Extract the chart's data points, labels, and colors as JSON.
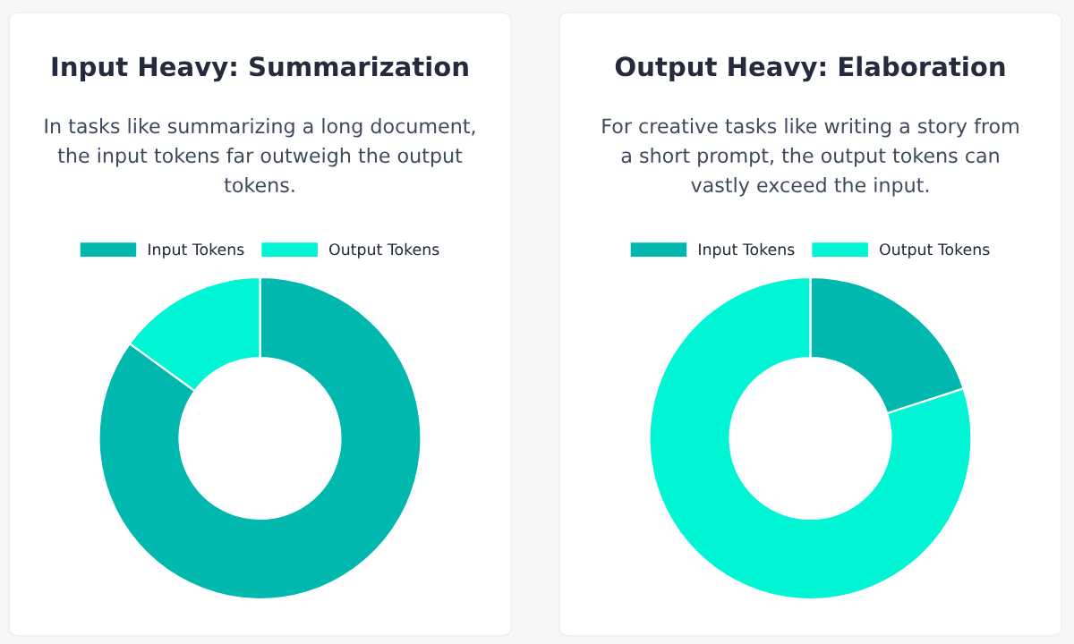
{
  "chart_data": [
    {
      "type": "donut",
      "title": "Input Heavy: Summarization",
      "subtitle": "In tasks like summarizing a long document, the input tokens far outweigh the output tokens.",
      "categories": [
        "Input Tokens",
        "Output Tokens"
      ],
      "values": [
        85,
        15
      ],
      "colors": [
        "#00b8ad",
        "#00f5d4"
      ],
      "legend": "top"
    },
    {
      "type": "donut",
      "title": "Output Heavy: Elaboration",
      "subtitle": "For creative tasks like writing a story from a short prompt, the output tokens can vastly exceed the input.",
      "categories": [
        "Input Tokens",
        "Output Tokens"
      ],
      "values": [
        20,
        80
      ],
      "colors": [
        "#00b8ad",
        "#00f5d4"
      ],
      "legend": "top"
    }
  ]
}
